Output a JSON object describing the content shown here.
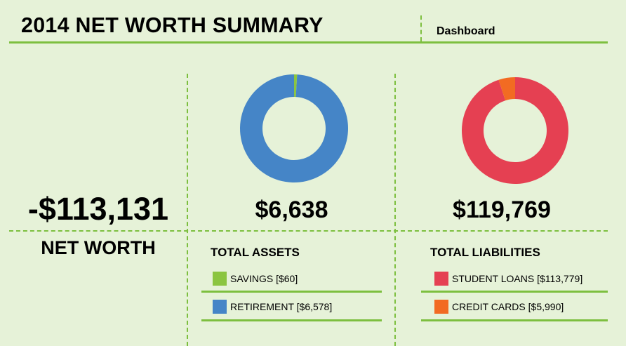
{
  "header": {
    "title": "2014 NET WORTH SUMMARY",
    "subtitle": "Dashboard"
  },
  "net_worth": {
    "value": "-$113,131",
    "label": "NET WORTH"
  },
  "assets": {
    "total": "$6,638",
    "title": "TOTAL ASSETS",
    "items": [
      {
        "label": "SAVINGS [$60]",
        "color": "#8bc540"
      },
      {
        "label": "RETIREMENT [$6,578]",
        "color": "#4585c7"
      }
    ]
  },
  "liabilities": {
    "total": "$119,769",
    "title": "TOTAL LIABILITIES",
    "items": [
      {
        "label": "STUDENT LOANS [$113,779]",
        "color": "#e54052"
      },
      {
        "label": "CREDIT CARDS [$5,990]",
        "color": "#f26b22"
      }
    ]
  },
  "chart_data": [
    {
      "type": "pie",
      "title": "TOTAL ASSETS",
      "categories": [
        "SAVINGS",
        "RETIREMENT"
      ],
      "values": [
        60,
        6578
      ],
      "colors": [
        "#8bc540",
        "#4585c7"
      ],
      "donut": true
    },
    {
      "type": "pie",
      "title": "TOTAL LIABILITIES",
      "categories": [
        "STUDENT LOANS",
        "CREDIT CARDS"
      ],
      "values": [
        113779,
        5990
      ],
      "colors": [
        "#e54052",
        "#f26b22"
      ],
      "donut": true
    }
  ]
}
